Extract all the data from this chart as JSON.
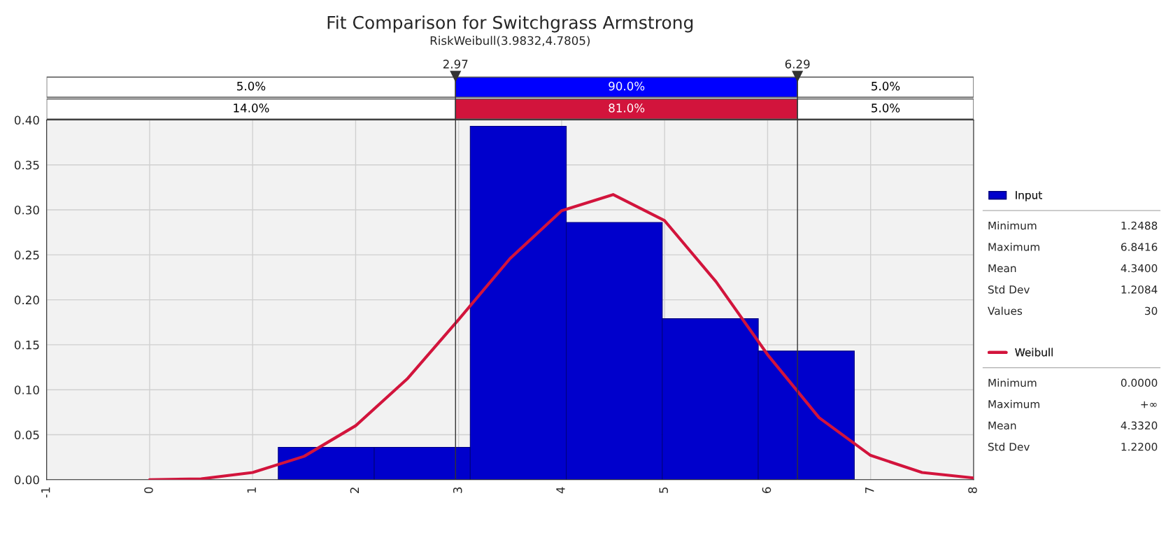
{
  "chart_data": {
    "type": "histogram",
    "title": "Fit Comparison for Switchgrass Armstrong",
    "subtitle": "RiskWeibull(3.9832,4.7805)",
    "series": [
      {
        "name": "Input",
        "color": "#0000cc",
        "bins": [
          1.2488,
          2.1809,
          3.113,
          4.0451,
          4.9772,
          5.9093,
          6.8416
        ],
        "values": [
          0.036,
          0.036,
          0.393,
          0.286,
          0.179,
          0.143
        ]
      },
      {
        "type": "line",
        "name": "Weibull",
        "color": "#d2143c",
        "x": [
          0,
          0.5,
          1,
          1.5,
          2,
          2.5,
          3,
          3.5,
          4,
          4.5,
          5,
          5.5,
          6,
          6.5,
          7,
          7.5,
          8
        ],
        "values": [
          0,
          0.001,
          0.008,
          0.026,
          0.06,
          0.112,
          0.178,
          0.246,
          0.299,
          0.317,
          0.288,
          0.22,
          0.139,
          0.069,
          0.027,
          0.008,
          0.002
        ]
      }
    ],
    "ref_lines": [
      {
        "axis": "x",
        "value": 2.97,
        "label": "2.97"
      },
      {
        "axis": "x",
        "value": 6.29,
        "label": "6.29"
      }
    ],
    "annotations": [
      "5.0%",
      "90.0%",
      "5.0%",
      "14.0%",
      "81.0%",
      "5.0%",
      "Minimum",
      "1.2488",
      "Maximum",
      "6.8416",
      "Mean",
      "4.3400",
      "Std Dev",
      "1.2084",
      "Values",
      "30",
      "Minimum",
      "0.0000",
      "Maximum",
      "+∞",
      "Mean",
      "4.3320",
      "Std Dev",
      "1.2200"
    ],
    "xlim": [
      -1,
      8
    ],
    "xticks": [
      -1,
      0,
      1,
      2,
      3,
      4,
      5,
      6,
      7,
      8
    ],
    "ylim": [
      0,
      0.4
    ],
    "yticks": [
      {
        "value": 0,
        "label": "0.00"
      },
      0.05,
      {
        "value": 0.1,
        "label": "0.10"
      },
      0.15,
      {
        "value": 0.2,
        "label": "0.20"
      },
      0.25,
      {
        "value": 0.3,
        "label": "0.30"
      },
      0.35,
      {
        "value": 0.4,
        "label": "0.40"
      }
    ],
    "grid": true,
    "legend": "right"
  }
}
